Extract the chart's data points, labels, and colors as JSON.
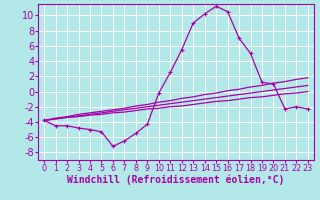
{
  "title": "",
  "xlabel": "Windchill (Refroidissement éolien,°C)",
  "ylabel": "",
  "bg_color": "#b2e8e8",
  "line_color": "#aa00aa",
  "grid_color": "#ffffff",
  "xlim": [
    -0.5,
    23.5
  ],
  "ylim": [
    -9.0,
    11.5
  ],
  "xticks": [
    0,
    1,
    2,
    3,
    4,
    5,
    6,
    7,
    8,
    9,
    10,
    11,
    12,
    13,
    14,
    15,
    16,
    17,
    18,
    19,
    20,
    21,
    22,
    23
  ],
  "yticks": [
    -8,
    -6,
    -4,
    -2,
    0,
    2,
    4,
    6,
    8,
    10
  ],
  "hours": [
    0,
    1,
    2,
    3,
    4,
    5,
    6,
    7,
    8,
    9,
    10,
    11,
    12,
    13,
    14,
    15,
    16,
    17,
    18,
    19,
    20,
    21,
    22,
    23
  ],
  "main_curve": [
    -3.8,
    -4.5,
    -4.5,
    -4.8,
    -5.0,
    -5.3,
    -7.2,
    -6.5,
    -5.5,
    -4.3,
    -0.2,
    2.5,
    5.5,
    9.0,
    10.2,
    11.2,
    10.5,
    7.0,
    5.0,
    1.2,
    1.0,
    -2.3,
    -2.0,
    -2.3
  ],
  "line2": [
    -3.8,
    -3.6,
    -3.4,
    -3.3,
    -3.1,
    -3.0,
    -2.8,
    -2.7,
    -2.5,
    -2.3,
    -2.2,
    -2.0,
    -1.9,
    -1.7,
    -1.5,
    -1.3,
    -1.2,
    -1.0,
    -0.8,
    -0.7,
    -0.5,
    -0.3,
    -0.2,
    0.0
  ],
  "line3": [
    -3.8,
    -3.5,
    -3.3,
    -3.0,
    -2.8,
    -2.6,
    -2.4,
    -2.2,
    -1.9,
    -1.7,
    -1.4,
    -1.2,
    -0.9,
    -0.7,
    -0.4,
    -0.2,
    0.1,
    0.3,
    0.6,
    0.8,
    1.1,
    1.3,
    1.6,
    1.8
  ],
  "line4": [
    -3.8,
    -3.6,
    -3.4,
    -3.2,
    -3.0,
    -2.8,
    -2.6,
    -2.4,
    -2.2,
    -2.0,
    -1.8,
    -1.6,
    -1.4,
    -1.2,
    -1.0,
    -0.8,
    -0.6,
    -0.4,
    -0.2,
    0.0,
    0.2,
    0.4,
    0.6,
    0.8
  ],
  "xlabel_fontsize": 7.0,
  "xtick_fontsize": 5.8,
  "ytick_fontsize": 7.0,
  "marker_size": 2.5,
  "linewidth": 0.9
}
